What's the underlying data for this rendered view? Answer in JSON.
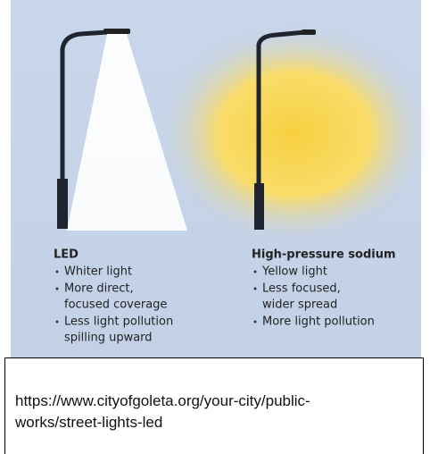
{
  "left": {
    "title": "LED",
    "bullets": [
      [
        "Whiter light"
      ],
      [
        "More direct,",
        "focused coverage"
      ],
      [
        "Less light pollution",
        "spilling upward"
      ]
    ]
  },
  "right": {
    "title": "High-pressure sodium",
    "bullets": [
      [
        "Yellow light"
      ],
      [
        "Less focused,",
        "wider spread"
      ],
      [
        "More light pollution"
      ]
    ]
  },
  "caption": {
    "lines": [
      "https://www.cityofgoleta.org/your-city/public-",
      "works/street-lights-led"
    ]
  }
}
